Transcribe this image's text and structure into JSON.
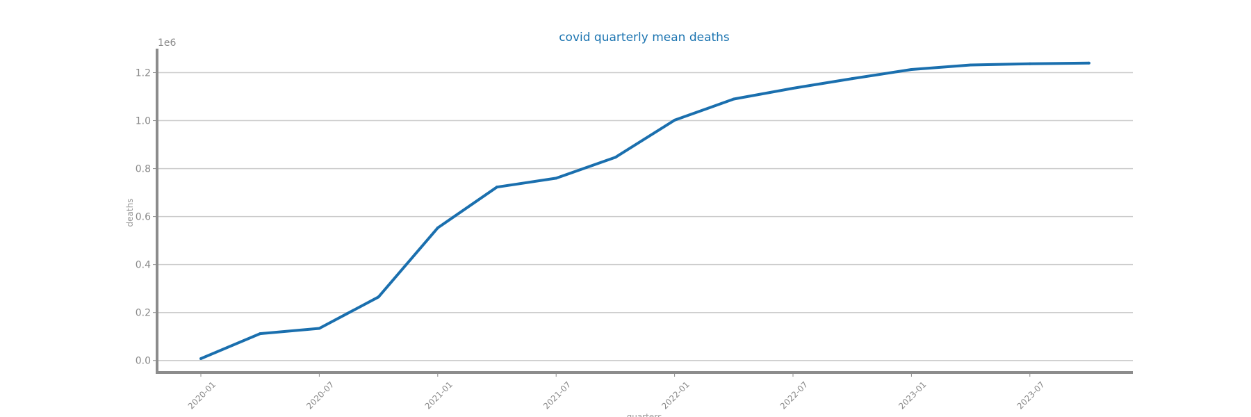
{
  "chart_data": {
    "type": "line",
    "title": "covid quarterly mean deaths",
    "xlabel": "quarters",
    "ylabel": "deaths",
    "y_scale_label": "1e6",
    "y_multiplier": 1000000,
    "x": [
      "2020-01",
      "2020-04",
      "2020-07",
      "2020-10",
      "2021-01",
      "2021-04",
      "2021-07",
      "2021-10",
      "2022-01",
      "2022-04",
      "2022-07",
      "2022-10",
      "2023-01",
      "2023-04",
      "2023-07",
      "2023-10"
    ],
    "x_ticks": [
      "2020-01",
      "2020-07",
      "2021-01",
      "2021-07",
      "2022-01",
      "2022-07",
      "2023-01",
      "2023-07"
    ],
    "y_ticks": [
      "0.0",
      "0.2",
      "0.4",
      "0.6",
      "0.8",
      "1.0",
      "1.2"
    ],
    "ylim": [
      -50000,
      1300000
    ],
    "grid": "y",
    "color": "#1a6fae",
    "series": [
      {
        "name": "",
        "values": [
          8000,
          112000,
          134000,
          265000,
          553000,
          723000,
          760000,
          847000,
          1002000,
          1090000,
          1135000,
          1175000,
          1213000,
          1232000,
          1237000,
          1240000
        ]
      }
    ]
  }
}
